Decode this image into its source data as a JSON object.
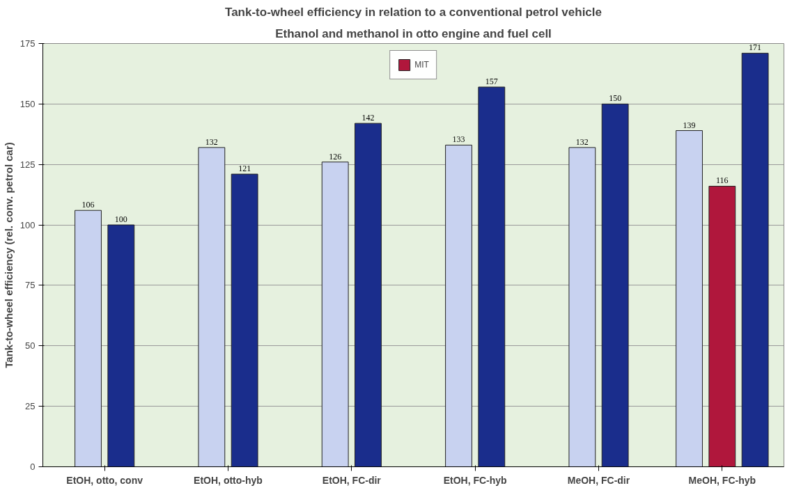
{
  "chart_data": {
    "type": "bar",
    "title": "Tank-to-wheel efficiency in relation to a conventional petrol vehicle",
    "subtitle": "Ethanol and methanol in otto engine and fuel cell",
    "ylabel": "Tank-to-wheel efficiency (rel. conv. petrol car)",
    "categories": [
      "EtOH, otto, conv",
      "EtOH, otto-hyb",
      "EtOH, FC-dir",
      "EtOH, FC-hyb",
      "MeOH, FC-dir",
      "MeOH, FC-hyb"
    ],
    "series": [
      {
        "color": "#c8d2f0",
        "values": [
          106,
          132,
          126,
          133,
          132,
          139
        ]
      },
      {
        "name": "MIT",
        "color": "#b0173c",
        "values": [
          null,
          null,
          null,
          null,
          null,
          116
        ]
      },
      {
        "color": "#1a2d8c",
        "values": [
          100,
          121,
          142,
          157,
          150,
          171
        ]
      }
    ],
    "ylim": [
      0,
      175
    ],
    "yticks": [
      0,
      25,
      50,
      75,
      100,
      125,
      150,
      175
    ],
    "grid": "y",
    "legend": "top",
    "data_labels": true
  }
}
